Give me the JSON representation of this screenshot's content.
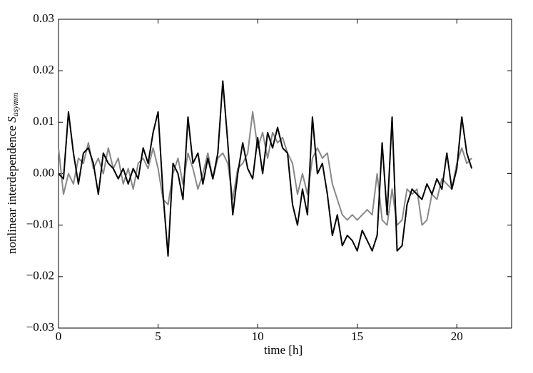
{
  "chart_data": {
    "type": "line",
    "xlabel": "time [h]",
    "ylabel": {
      "text": "nonlinear interdependence",
      "symbol": "S",
      "subscript": "asymm"
    },
    "x": [
      0,
      0.25,
      0.5,
      0.75,
      1,
      1.25,
      1.5,
      1.75,
      2,
      2.25,
      2.5,
      2.75,
      3,
      3.25,
      3.5,
      3.75,
      4,
      4.25,
      4.5,
      4.75,
      5,
      5.25,
      5.5,
      5.75,
      6,
      6.25,
      6.5,
      6.75,
      7,
      7.25,
      7.5,
      7.75,
      8,
      8.25,
      8.5,
      8.75,
      9,
      9.25,
      9.5,
      9.75,
      10,
      10.25,
      10.5,
      10.75,
      11,
      11.25,
      11.5,
      11.75,
      12,
      12.25,
      12.5,
      12.75,
      13,
      13.25,
      13.5,
      13.75,
      14,
      14.25,
      14.5,
      14.75,
      15,
      15.25,
      15.5,
      15.75,
      16,
      16.25,
      16.5,
      16.75,
      17,
      17.25,
      17.5,
      17.75,
      18,
      18.25,
      18.5,
      18.75,
      19,
      19.25,
      19.5,
      19.75,
      20,
      20.25,
      20.5,
      20.75
    ],
    "series": [
      {
        "color": "#888888",
        "values": [
          0.005,
          -0.004,
          0,
          -0.002,
          0.003,
          0.002,
          0.006,
          0.001,
          0.003,
          0,
          0.005,
          0.001,
          0.003,
          -0.002,
          0.001,
          -0.003,
          0.002,
          0.003,
          0.001,
          0.005,
          0.001,
          -0.005,
          -0.006,
          0,
          0.003,
          -0.002,
          0.004,
          0.001,
          -0.003,
          0,
          0.004,
          -0.001,
          0.003,
          0.004,
          0.002,
          -0.005,
          0.001,
          0.002,
          0.004,
          0.012,
          0.005,
          0.008,
          0.003,
          0.008,
          0.006,
          0.007,
          0.004,
          0.002,
          -0.004,
          0,
          -0.004,
          0.003,
          0.005,
          0.003,
          0.004,
          -0.002,
          -0.005,
          -0.008,
          -0.009,
          -0.008,
          -0.009,
          -0.008,
          -0.007,
          -0.008,
          0,
          -0.009,
          -0.01,
          -0.003,
          -0.01,
          -0.009,
          -0.003,
          -0.004,
          -0.003,
          -0.01,
          -0.009,
          -0.004,
          -0.005,
          -0.001,
          -0.002,
          -0.003,
          0.002,
          0.005,
          0.002,
          0.003
        ]
      },
      {
        "color": "#000000",
        "values": [
          0,
          -0.001,
          0.012,
          0.004,
          -0.002,
          0.004,
          0.005,
          0.002,
          -0.004,
          0.004,
          0.002,
          0.001,
          -0.001,
          0.001,
          -0.002,
          0.001,
          -0.001,
          0.005,
          0.002,
          0.008,
          0.012,
          -0.004,
          -0.016,
          0.002,
          0,
          -0.005,
          0.011,
          0.002,
          0.004,
          -0.002,
          0.003,
          -0.001,
          0.004,
          0.018,
          0.006,
          -0.008,
          0,
          0.006,
          0.001,
          -0.001,
          0.007,
          0,
          0.008,
          0.005,
          0.009,
          0.005,
          0.004,
          -0.006,
          -0.01,
          -0.003,
          -0.008,
          0.011,
          0,
          0.002,
          -0.004,
          -0.012,
          -0.008,
          -0.014,
          -0.012,
          -0.013,
          -0.015,
          -0.011,
          -0.013,
          -0.015,
          -0.012,
          0.006,
          -0.008,
          0.011,
          -0.015,
          -0.014,
          -0.006,
          -0.003,
          -0.004,
          -0.005,
          -0.002,
          -0.004,
          -0.001,
          -0.003,
          0.004,
          -0.003,
          0.001,
          0.011,
          0.004,
          0.001
        ]
      }
    ],
    "xlim": [
      0,
      22.75
    ],
    "xticks": [
      0,
      5,
      10,
      15,
      20
    ],
    "ylim": [
      -0.03,
      0.03
    ],
    "yticks": [
      {
        "value": -0.03,
        "label": "−0.03"
      },
      {
        "value": -0.02,
        "label": "−0.02"
      },
      {
        "value": -0.01,
        "label": "−0.01"
      },
      {
        "value": 0,
        "label": "0.00"
      },
      0.01,
      0.02,
      0.03
    ]
  }
}
